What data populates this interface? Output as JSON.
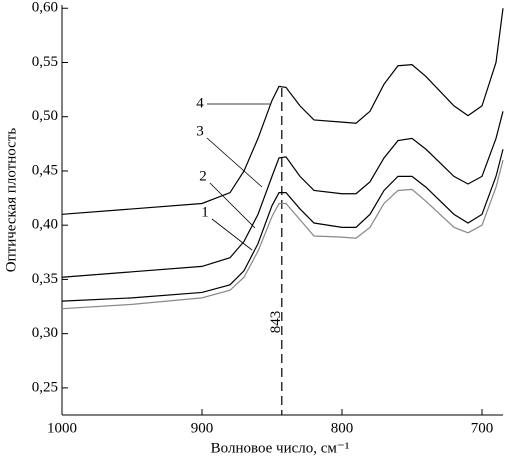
{
  "chart_data": {
    "type": "line",
    "x_label": "Волновое число, см⁻¹",
    "y_label": "Оптическая плотность",
    "x": [
      1000,
      950,
      900,
      880,
      870,
      860,
      850,
      845,
      840,
      830,
      820,
      800,
      790,
      780,
      770,
      760,
      750,
      740,
      720,
      710,
      700,
      690,
      685
    ],
    "series": [
      {
        "name": "1",
        "color": "#888888",
        "values": [
          0.323,
          0.327,
          0.333,
          0.34,
          0.352,
          0.376,
          0.408,
          0.42,
          0.42,
          0.405,
          0.39,
          0.389,
          0.388,
          0.398,
          0.42,
          0.432,
          0.433,
          0.422,
          0.398,
          0.393,
          0.4,
          0.435,
          0.46
        ]
      },
      {
        "name": "2",
        "color": "#000000",
        "values": [
          0.33,
          0.333,
          0.338,
          0.345,
          0.358,
          0.383,
          0.418,
          0.43,
          0.43,
          0.415,
          0.402,
          0.398,
          0.398,
          0.41,
          0.432,
          0.445,
          0.445,
          0.435,
          0.41,
          0.402,
          0.41,
          0.445,
          0.47
        ]
      },
      {
        "name": "3",
        "color": "#000000",
        "values": [
          0.352,
          0.357,
          0.362,
          0.37,
          0.385,
          0.41,
          0.445,
          0.462,
          0.463,
          0.445,
          0.432,
          0.429,
          0.429,
          0.44,
          0.462,
          0.478,
          0.48,
          0.47,
          0.445,
          0.438,
          0.445,
          0.48,
          0.505
        ]
      },
      {
        "name": "4",
        "color": "#000000",
        "values": [
          0.41,
          0.415,
          0.42,
          0.43,
          0.45,
          0.48,
          0.515,
          0.528,
          0.527,
          0.51,
          0.497,
          0.495,
          0.494,
          0.505,
          0.53,
          0.547,
          0.548,
          0.537,
          0.51,
          0.501,
          0.51,
          0.55,
          0.6
        ]
      }
    ],
    "marker_x": 843,
    "xlim": [
      1000,
      685
    ],
    "xticks": [
      1000,
      900,
      800,
      700
    ],
    "ylim": [
      0.225,
      0.603
    ],
    "yticks": [
      {
        "value": 0.25,
        "label": "0,25"
      },
      {
        "value": 0.3,
        "label": "0,30"
      },
      {
        "value": 0.35,
        "label": "0,35"
      },
      {
        "value": 0.4,
        "label": "0,40"
      },
      {
        "value": 0.45,
        "label": "0,45"
      },
      {
        "value": 0.5,
        "label": "0,50"
      },
      {
        "value": 0.55,
        "label": "0,55"
      },
      {
        "value": 0.6,
        "label": "0,60"
      }
    ]
  }
}
